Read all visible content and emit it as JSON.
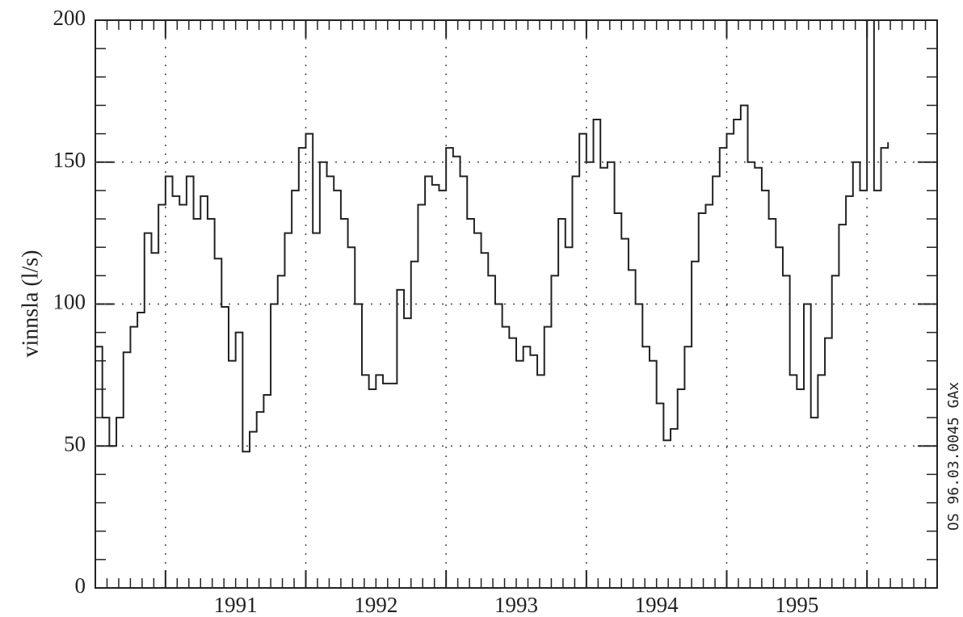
{
  "chart_data": {
    "type": "line",
    "drawstyle": "steps",
    "ylabel": "vinnsla (l/s)",
    "annotation": "OS 96.03.0045 GAx",
    "color": "#222222",
    "xlim": [
      1990.5,
      1996.5
    ],
    "ylim": [
      0,
      200
    ],
    "xticks": [
      {
        "value": 1991.5,
        "label": "1991"
      },
      {
        "value": 1992.5,
        "label": "1992"
      },
      {
        "value": 1993.5,
        "label": "1993"
      },
      {
        "value": 1994.5,
        "label": "1994"
      },
      {
        "value": 1995.5,
        "label": "1995"
      }
    ],
    "yticks": [
      0,
      50,
      100,
      150,
      200
    ],
    "x_grid": [
      1991,
      1992,
      1993,
      1994,
      1995,
      1996
    ],
    "y_grid": [
      50,
      100,
      150
    ],
    "grid": true,
    "x": [
      1990.5,
      1990.55,
      1990.6,
      1990.65,
      1990.7,
      1990.75,
      1990.8,
      1990.85,
      1990.9,
      1990.95,
      1991,
      1991.05,
      1991.1,
      1991.15,
      1991.2,
      1991.25,
      1991.3,
      1991.35,
      1991.4,
      1991.45,
      1991.5,
      1991.55,
      1991.6,
      1991.65,
      1991.7,
      1991.75,
      1991.8,
      1991.85,
      1991.9,
      1991.95,
      1992,
      1992.05,
      1992.1,
      1992.15,
      1992.2,
      1992.25,
      1992.3,
      1992.35,
      1992.4,
      1992.45,
      1992.5,
      1992.55,
      1992.6,
      1992.65,
      1992.7,
      1992.75,
      1992.8,
      1992.85,
      1992.9,
      1992.95,
      1993,
      1993.05,
      1993.1,
      1993.15,
      1993.2,
      1993.25,
      1993.3,
      1993.35,
      1993.4,
      1993.45,
      1993.5,
      1993.55,
      1993.6,
      1993.65,
      1993.7,
      1993.75,
      1993.8,
      1993.85,
      1993.9,
      1993.95,
      1994,
      1994.05,
      1994.1,
      1994.15,
      1994.2,
      1994.25,
      1994.3,
      1994.35,
      1994.4,
      1994.45,
      1994.5,
      1994.55,
      1994.6,
      1994.65,
      1994.7,
      1994.75,
      1994.8,
      1994.85,
      1994.9,
      1994.95,
      1995,
      1995.05,
      1995.1,
      1995.15,
      1995.2,
      1995.25,
      1995.3,
      1995.35,
      1995.4,
      1995.45,
      1995.5,
      1995.55,
      1995.6,
      1995.65,
      1995.7,
      1995.75,
      1995.8,
      1995.85,
      1995.9,
      1995.95,
      1996,
      1996.05,
      1996.1,
      1996.15
    ],
    "values": [
      85,
      60,
      50,
      60,
      83,
      92,
      97,
      125,
      118,
      135,
      145,
      138,
      135,
      145,
      130,
      138,
      130,
      116,
      99,
      80,
      90,
      48,
      55,
      62,
      68,
      100,
      110,
      125,
      140,
      155,
      160,
      125,
      150,
      145,
      140,
      130,
      120,
      100,
      75,
      70,
      75,
      72,
      72,
      105,
      95,
      115,
      135,
      145,
      142,
      140,
      155,
      152,
      145,
      130,
      125,
      118,
      110,
      100,
      92,
      88,
      80,
      85,
      82,
      75,
      92,
      110,
      130,
      120,
      145,
      160,
      150,
      165,
      148,
      150,
      132,
      123,
      112,
      100,
      85,
      80,
      65,
      52,
      56,
      70,
      85,
      115,
      132,
      135,
      145,
      155,
      160,
      165,
      170,
      150,
      148,
      140,
      130,
      120,
      110,
      75,
      70,
      100,
      60,
      75,
      88,
      110,
      128,
      138,
      150,
      140,
      200,
      140,
      155,
      157
    ]
  }
}
